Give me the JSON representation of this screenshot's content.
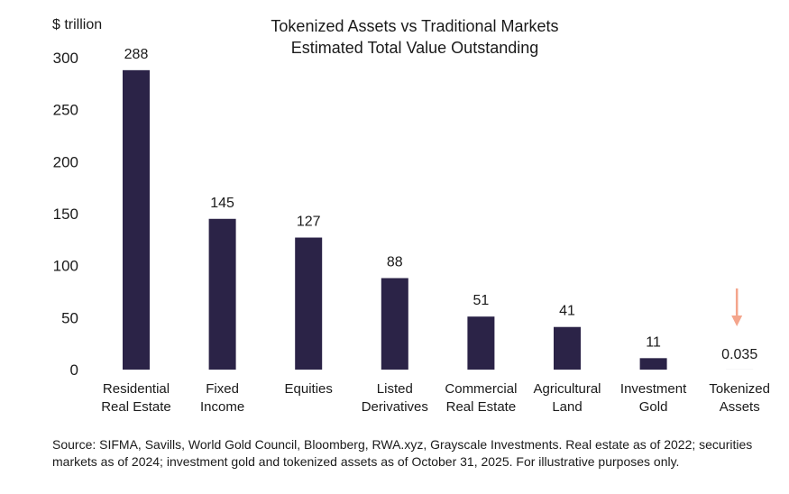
{
  "chart_data": {
    "type": "bar",
    "title": [
      "Tokenized Assets vs Traditional Markets",
      "Estimated Total Value Outstanding"
    ],
    "ylabel": "$ trillion",
    "ylim": [
      0,
      300
    ],
    "yticks": [
      0,
      50,
      100,
      150,
      200,
      250,
      300
    ],
    "categories": [
      [
        "Residential",
        "Real Estate"
      ],
      [
        "Fixed",
        "Income"
      ],
      [
        "Equities"
      ],
      [
        "Listed",
        "Derivatives"
      ],
      [
        "Commercial",
        "Real Estate"
      ],
      [
        "Agricultural",
        "Land"
      ],
      [
        "Investment",
        "Gold"
      ],
      [
        "Tokenized",
        "Assets"
      ]
    ],
    "values": [
      288,
      145,
      127,
      88,
      51,
      41,
      11,
      0.035
    ],
    "value_labels": [
      "288",
      "145",
      "127",
      "88",
      "51",
      "41",
      "11",
      "0.035"
    ],
    "grid": false,
    "annotation": {
      "type": "arrow-down",
      "target_category_index": 7
    },
    "colors": {
      "bar": "#2b2347",
      "arrow": "#f4a58c",
      "text": "#1a1a1a"
    }
  },
  "source_note": "Source: SIFMA, Savills, World Gold Council, Bloomberg, RWA.xyz, Grayscale Investments. Real estate as of 2022; securities markets as of 2024; investment gold and tokenized assets as of October 31, 2025. For illustrative purposes only."
}
